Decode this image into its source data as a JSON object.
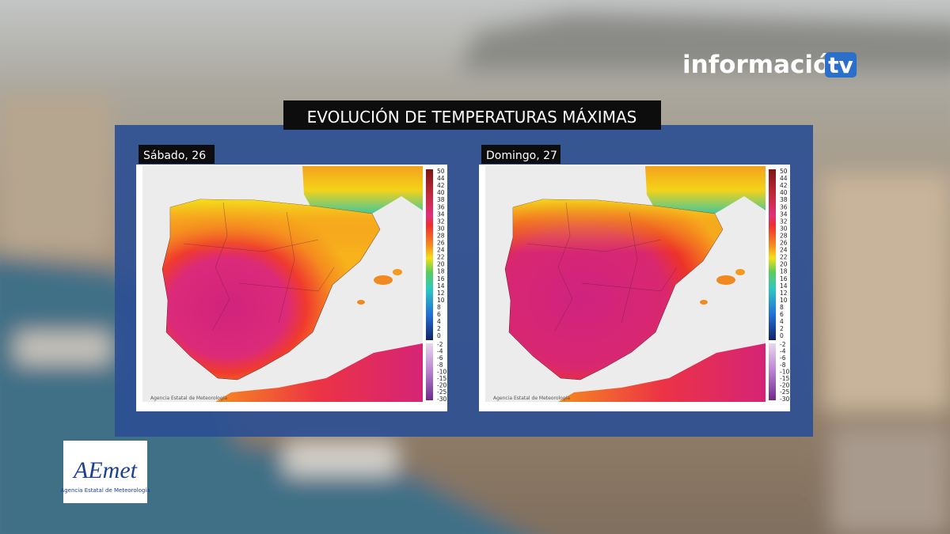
{
  "brand": {
    "name": "información",
    "suffix": "tv"
  },
  "title": "EVOLUCIÓN DE TEMPERATURAS MÁXIMAS",
  "maps": [
    {
      "label": "Sábado, 26",
      "credit": "Agencia Estatal de Meteorología"
    },
    {
      "label": "Domingo, 27",
      "credit": "Agencia Estatal de Meteorología"
    }
  ],
  "scale": [
    50,
    44,
    42,
    40,
    38,
    36,
    34,
    32,
    30,
    28,
    26,
    24,
    22,
    20,
    18,
    16,
    14,
    12,
    10,
    8,
    6,
    4,
    2,
    0,
    -2,
    -4,
    -6,
    -8,
    -10,
    -15,
    -20,
    -25,
    -30
  ],
  "logo": {
    "name": "AEmet",
    "subtitle": "Agencia Estatal de Meteorología"
  }
}
